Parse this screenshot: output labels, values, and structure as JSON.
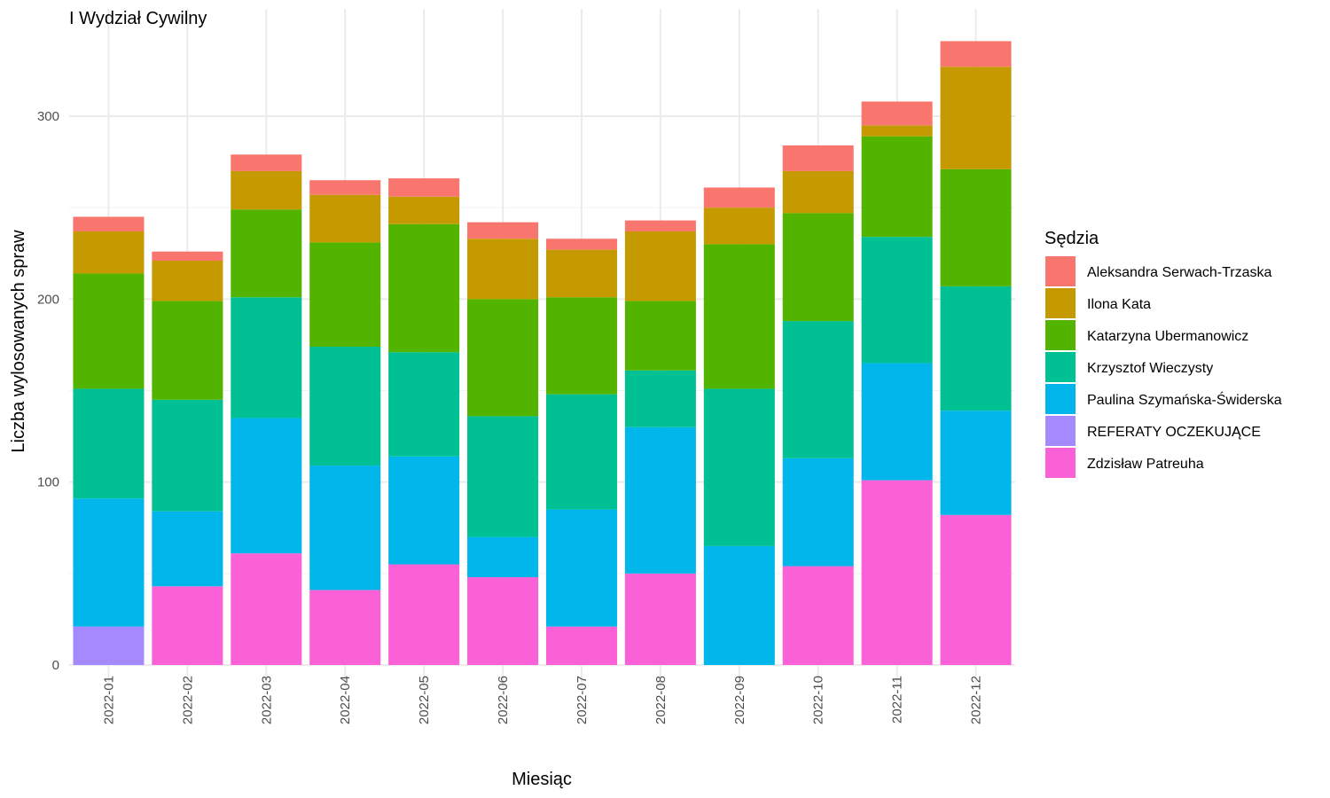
{
  "chart_data": {
    "type": "bar",
    "stacked": true,
    "title": "I Wydział Cywilny",
    "xlabel": "Miesiąc",
    "ylabel": "Liczba wylosowanych spraw",
    "ylim": [
      0,
      340
    ],
    "yticks": [
      0,
      100,
      200,
      300
    ],
    "grid": true,
    "legend_position": "right",
    "legend_title": "Sędzia",
    "categories": [
      "2022-01",
      "2022-02",
      "2022-03",
      "2022-04",
      "2022-05",
      "2022-06",
      "2022-07",
      "2022-08",
      "2022-09",
      "2022-10",
      "2022-11",
      "2022-12"
    ],
    "series": [
      {
        "name": "Aleksandra Serwach-Trzaska",
        "color": "#F8766D",
        "values": [
          8,
          5,
          9,
          8,
          10,
          9,
          6,
          6,
          11,
          14,
          13,
          14
        ]
      },
      {
        "name": "Ilona Kata",
        "color": "#C49A00",
        "values": [
          23,
          22,
          21,
          26,
          15,
          33,
          26,
          38,
          20,
          23,
          6,
          56
        ]
      },
      {
        "name": "Katarzyna Ubermanowicz",
        "color": "#53B400",
        "values": [
          63,
          54,
          48,
          57,
          70,
          64,
          53,
          38,
          79,
          59,
          55,
          64
        ]
      },
      {
        "name": "Krzysztof Wieczysty",
        "color": "#00C094",
        "values": [
          60,
          61,
          66,
          65,
          57,
          66,
          63,
          31,
          86,
          75,
          69,
          68
        ]
      },
      {
        "name": "Paulina Szymańska-Świderska",
        "color": "#00B6EB",
        "values": [
          70,
          41,
          74,
          68,
          59,
          22,
          64,
          80,
          65,
          59,
          64,
          57
        ]
      },
      {
        "name": "REFERATY OCZEKUJĄCE",
        "color": "#A58AFF",
        "values": [
          21,
          0,
          0,
          0,
          0,
          0,
          0,
          0,
          0,
          0,
          0,
          0
        ]
      },
      {
        "name": "Zdzisław Patreuha",
        "color": "#FB61D7",
        "values": [
          0,
          43,
          61,
          41,
          55,
          48,
          21,
          50,
          0,
          54,
          101,
          82
        ]
      }
    ]
  }
}
